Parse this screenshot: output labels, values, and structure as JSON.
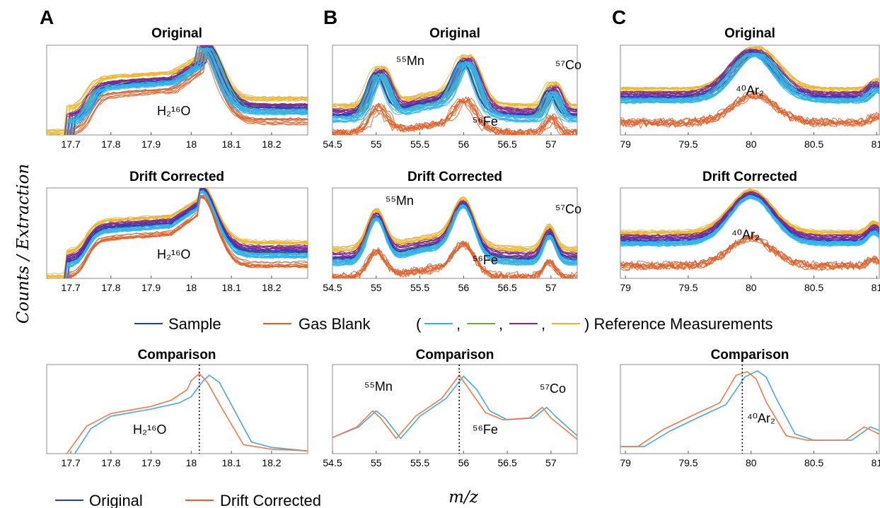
{
  "colors": {
    "sample": "#1f3fbf",
    "gas_blank": "#e0612a",
    "ref_light_blue": "#33b4e8",
    "ref_green": "#6fae3c",
    "ref_purple": "#7d2a95",
    "ref_yellow": "#f0b52a",
    "original_line": "#4aa7dc",
    "drift_line": "#ee7a4d"
  },
  "labels": {
    "ylabel": "Counts / Extraction",
    "xlabel": "m/z",
    "panel_letters": [
      "A",
      "B",
      "C"
    ],
    "legend_sample": "Sample",
    "legend_gas_blank": "Gas Blank",
    "legend_ref_open": "(",
    "legend_ref_close": ") Reference Measurements",
    "legend_original": "Original",
    "legend_drift": "Drift Corrected"
  },
  "chart_data": [
    {
      "id": "A-original",
      "type": "line",
      "title": "Original",
      "xlim": [
        17.64,
        18.29
      ],
      "ticks": [
        17.7,
        17.8,
        17.9,
        18,
        18.1,
        18.2
      ],
      "annotations": [
        {
          "text": "H₂¹⁶O"
        }
      ]
    },
    {
      "id": "B-original",
      "type": "line",
      "title": "Original",
      "xlim": [
        54.5,
        57.3
      ],
      "ticks": [
        54.5,
        55,
        55.5,
        56,
        56.5,
        57
      ],
      "annotations": [
        {
          "text": "⁵⁵Mn"
        },
        {
          "text": "⁵⁶Fe"
        },
        {
          "text": "⁵⁷Co"
        }
      ]
    },
    {
      "id": "C-original",
      "type": "line",
      "title": "Original",
      "xlim": [
        78.96,
        81.02
      ],
      "ticks": [
        79,
        79.5,
        80,
        80.5,
        81
      ],
      "annotations": [
        {
          "text": "⁴⁰Ar₂"
        }
      ]
    },
    {
      "id": "A-drift",
      "type": "line",
      "title": "Drift Corrected",
      "xlim": [
        17.64,
        18.29
      ],
      "ticks": [
        17.7,
        17.8,
        17.9,
        18,
        18.1,
        18.2
      ],
      "annotations": [
        {
          "text": "H₂¹⁶O"
        }
      ]
    },
    {
      "id": "B-drift",
      "type": "line",
      "title": "Drift Corrected",
      "xlim": [
        54.5,
        57.3
      ],
      "ticks": [
        54.5,
        55,
        55.5,
        56,
        56.5,
        57
      ],
      "annotations": [
        {
          "text": "⁵⁵Mn"
        },
        {
          "text": "⁵⁶Fe"
        },
        {
          "text": "⁵⁷Co"
        }
      ]
    },
    {
      "id": "C-drift",
      "type": "line",
      "title": "Drift Corrected",
      "xlim": [
        78.96,
        81.02
      ],
      "ticks": [
        79,
        79.5,
        80,
        80.5,
        81
      ],
      "annotations": [
        {
          "text": "⁴⁰Ar₂"
        }
      ]
    },
    {
      "id": "A-comparison",
      "type": "line",
      "title": "Comparison",
      "xlim": [
        17.64,
        18.29
      ],
      "ticks": [
        17.7,
        17.8,
        17.9,
        18,
        18.1,
        18.2
      ],
      "vline": 18.02,
      "annotations": [
        {
          "text": "H₂¹⁶O"
        }
      ],
      "series": [
        {
          "name": "Original",
          "x": [
            17.71,
            17.75,
            17.8,
            17.9,
            17.97,
            18.0,
            18.03,
            18.045,
            18.07,
            18.1,
            18.15,
            18.2,
            18.29
          ],
          "y": [
            0.0,
            0.28,
            0.42,
            0.5,
            0.57,
            0.64,
            0.82,
            0.88,
            0.8,
            0.55,
            0.13,
            0.07,
            0.03
          ]
        },
        {
          "name": "Drift Corrected",
          "x": [
            17.69,
            17.74,
            17.8,
            17.9,
            17.95,
            17.99,
            18.0,
            18.02,
            18.04,
            18.08,
            18.13,
            18.2,
            18.29
          ],
          "y": [
            0.0,
            0.31,
            0.45,
            0.53,
            0.6,
            0.72,
            0.82,
            0.9,
            0.8,
            0.48,
            0.1,
            0.05,
            0.03
          ]
        }
      ]
    },
    {
      "id": "B-comparison",
      "type": "line",
      "title": "Comparison",
      "xlim": [
        54.5,
        57.3
      ],
      "ticks": [
        54.5,
        55,
        55.5,
        56,
        56.5,
        57
      ],
      "vline": 55.95,
      "annotations": [
        {
          "text": "⁵⁵Mn"
        },
        {
          "text": "⁵⁶Fe"
        },
        {
          "text": "⁵⁷Co"
        }
      ],
      "series": [
        {
          "name": "Original",
          "x": [
            54.5,
            54.8,
            55.0,
            55.1,
            55.28,
            55.5,
            55.8,
            56.0,
            56.15,
            56.3,
            56.5,
            56.8,
            56.95,
            57.05,
            57.3
          ],
          "y": [
            0.18,
            0.3,
            0.48,
            0.4,
            0.17,
            0.42,
            0.62,
            0.87,
            0.72,
            0.48,
            0.38,
            0.4,
            0.52,
            0.42,
            0.2
          ]
        },
        {
          "name": "Drift Corrected",
          "x": [
            54.5,
            54.78,
            54.96,
            55.05,
            55.23,
            55.45,
            55.75,
            55.95,
            56.08,
            56.25,
            56.45,
            56.75,
            56.9,
            57.0,
            57.3
          ],
          "y": [
            0.18,
            0.3,
            0.48,
            0.4,
            0.17,
            0.42,
            0.62,
            0.88,
            0.7,
            0.46,
            0.38,
            0.4,
            0.52,
            0.4,
            0.16
          ]
        }
      ]
    },
    {
      "id": "C-comparison",
      "type": "line",
      "title": "Comparison",
      "xlim": [
        78.96,
        81.02
      ],
      "ticks": [
        79,
        79.5,
        80,
        80.5,
        81
      ],
      "vline": 79.93,
      "annotations": [
        {
          "text": "⁴⁰Ar₂"
        }
      ],
      "series": [
        {
          "name": "Original",
          "x": [
            78.96,
            79.15,
            79.35,
            79.6,
            79.8,
            79.95,
            80.05,
            80.12,
            80.2,
            80.35,
            80.5,
            80.8,
            80.95,
            81.02
          ],
          "y": [
            0.08,
            0.08,
            0.25,
            0.42,
            0.55,
            0.86,
            0.93,
            0.86,
            0.62,
            0.22,
            0.15,
            0.15,
            0.3,
            0.26
          ]
        },
        {
          "name": "Drift Corrected",
          "x": [
            78.96,
            79.1,
            79.3,
            79.55,
            79.75,
            79.88,
            79.97,
            80.04,
            80.12,
            80.28,
            80.45,
            80.75,
            80.9,
            81.02
          ],
          "y": [
            0.08,
            0.08,
            0.27,
            0.44,
            0.57,
            0.88,
            0.92,
            0.84,
            0.58,
            0.2,
            0.15,
            0.15,
            0.3,
            0.22
          ]
        }
      ]
    }
  ]
}
